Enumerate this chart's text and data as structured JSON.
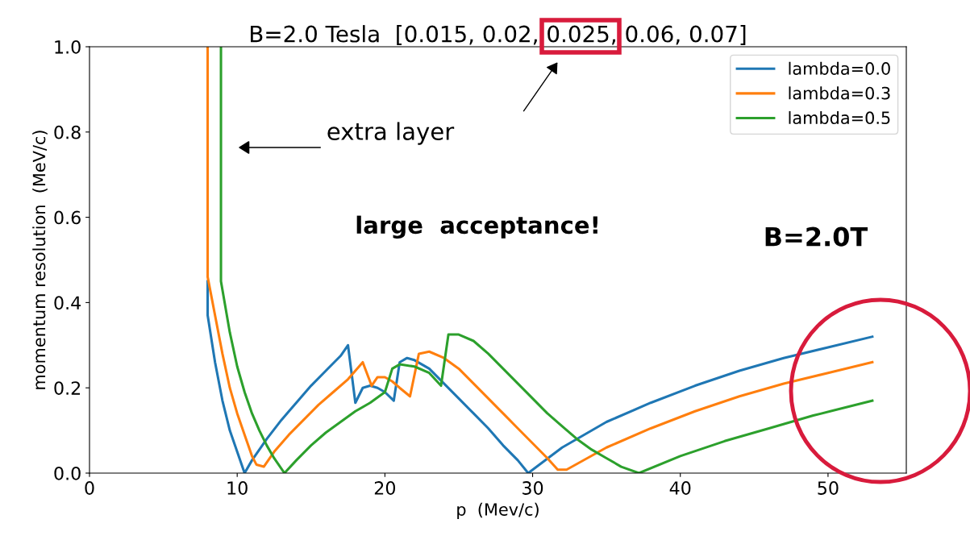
{
  "chart_data": {
    "type": "line",
    "title": "B=2.0 Tesla  [0.015, 0.02, 0.025, 0.06, 0.07]",
    "xlabel": "p  (Mev/c)",
    "ylabel": "momentum resolution  (MeV/c)",
    "xlim": [
      0,
      55.3
    ],
    "xticks": [
      0,
      10,
      20,
      30,
      40,
      50
    ],
    "ylim": [
      0,
      1
    ],
    "yticks": [
      {
        "value": 0,
        "label": "0.0"
      },
      0.2,
      0.4,
      0.6,
      0.8,
      {
        "value": 1,
        "label": "1.0"
      }
    ],
    "grid": false,
    "legend": "top right",
    "marker": "none",
    "line_style": "solid",
    "annotations": [
      "extra layer",
      "large  acceptance!",
      "B=2.0T"
    ],
    "series": [
      {
        "name": "lambda=0.0",
        "color": "#1f77b4",
        "x": [
          8,
          8,
          8.5,
          9,
          9.5,
          10,
          10.5,
          11,
          12,
          13,
          14,
          15,
          16,
          17,
          17.5,
          18,
          18.5,
          19,
          19.5,
          20,
          20.6,
          21,
          21.5,
          22,
          23,
          24,
          25,
          26,
          27,
          28,
          29,
          29.7,
          32,
          35,
          38,
          41,
          44,
          47,
          50,
          53
        ],
        "values": [
          0.45,
          0.37,
          0.26,
          0.17,
          0.1,
          0.05,
          0.0,
          0.03,
          0.08,
          0.125,
          0.165,
          0.205,
          0.24,
          0.275,
          0.3,
          0.165,
          0.2,
          0.205,
          0.2,
          0.19,
          0.17,
          0.26,
          0.27,
          0.265,
          0.245,
          0.21,
          0.175,
          0.14,
          0.105,
          0.065,
          0.03,
          0.0,
          0.06,
          0.12,
          0.165,
          0.205,
          0.24,
          0.27,
          0.295,
          0.32
        ]
      },
      {
        "name": "lambda=0.3",
        "color": "#ff7f0e",
        "x": [
          8,
          8,
          8.5,
          9,
          9.5,
          10,
          10.5,
          11,
          11.3,
          11.8,
          12.5,
          13.5,
          14.5,
          15.5,
          16.5,
          17.5,
          18.5,
          19.1,
          19.5,
          20,
          20.5,
          21,
          21.7,
          22.3,
          23,
          24,
          25,
          26,
          27,
          28,
          29,
          30,
          31,
          31.7,
          32.3,
          35,
          38,
          41,
          44,
          47,
          50,
          53
        ],
        "values": [
          1.0,
          0.46,
          0.37,
          0.28,
          0.2,
          0.14,
          0.09,
          0.04,
          0.02,
          0.015,
          0.05,
          0.09,
          0.125,
          0.16,
          0.19,
          0.22,
          0.26,
          0.205,
          0.225,
          0.225,
          0.215,
          0.2,
          0.18,
          0.28,
          0.285,
          0.27,
          0.245,
          0.21,
          0.175,
          0.14,
          0.105,
          0.07,
          0.035,
          0.008,
          0.008,
          0.06,
          0.105,
          0.145,
          0.18,
          0.21,
          0.235,
          0.26
        ]
      },
      {
        "name": "lambda=0.5",
        "color": "#2ca02c",
        "x": [
          8.9,
          8.9,
          9.5,
          10,
          10.5,
          11,
          11.5,
          12,
          12.5,
          13.2,
          14,
          15,
          16,
          17,
          18,
          19,
          20,
          20.5,
          21,
          22,
          23,
          23.8,
          24.3,
          25,
          26,
          27,
          28,
          29,
          30,
          31,
          32,
          33,
          34,
          35,
          36,
          37.2,
          40,
          43,
          46,
          49,
          53
        ],
        "values": [
          1.0,
          0.45,
          0.33,
          0.25,
          0.19,
          0.14,
          0.1,
          0.065,
          0.035,
          0.0,
          0.03,
          0.065,
          0.095,
          0.12,
          0.145,
          0.165,
          0.19,
          0.245,
          0.255,
          0.25,
          0.235,
          0.205,
          0.325,
          0.325,
          0.31,
          0.28,
          0.245,
          0.21,
          0.175,
          0.14,
          0.11,
          0.08,
          0.055,
          0.035,
          0.015,
          0.0,
          0.04,
          0.075,
          0.105,
          0.135,
          0.17
        ]
      }
    ]
  }
}
